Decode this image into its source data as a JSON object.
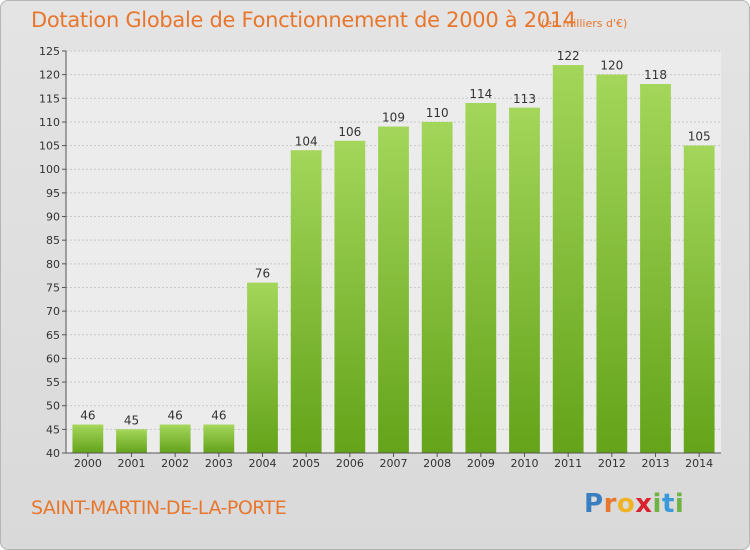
{
  "title": "Dotation Globale de Fonctionnement de 2000 à 2014",
  "subtitle": "(en milliers d'€)",
  "commune": "SAINT-MARTIN-DE-LA-PORTE",
  "brand": {
    "letters": [
      "P",
      "r",
      "o",
      "x",
      "i",
      "t",
      "i"
    ],
    "colors": [
      "#3a7ec2",
      "#e8772e",
      "#f0b323",
      "#d9232f",
      "#6fb344",
      "#3a9ad9",
      "#6fb344"
    ]
  },
  "colors": {
    "title": "#e8772e",
    "bar_light": "#a3d65a",
    "bar_dark": "#64a31a"
  },
  "chart_data": {
    "type": "bar",
    "categories": [
      "2000",
      "2001",
      "2002",
      "2003",
      "2004",
      "2005",
      "2006",
      "2007",
      "2008",
      "2009",
      "2010",
      "2011",
      "2012",
      "2013",
      "2014"
    ],
    "values": [
      46,
      45,
      46,
      46,
      76,
      104,
      106,
      109,
      110,
      114,
      113,
      122,
      120,
      118,
      105
    ],
    "ylim": [
      40,
      125
    ],
    "yticks": [
      40,
      45,
      50,
      55,
      60,
      65,
      70,
      75,
      80,
      85,
      90,
      95,
      100,
      105,
      110,
      115,
      120,
      125
    ],
    "grid": true,
    "xlabel": "",
    "ylabel": ""
  }
}
